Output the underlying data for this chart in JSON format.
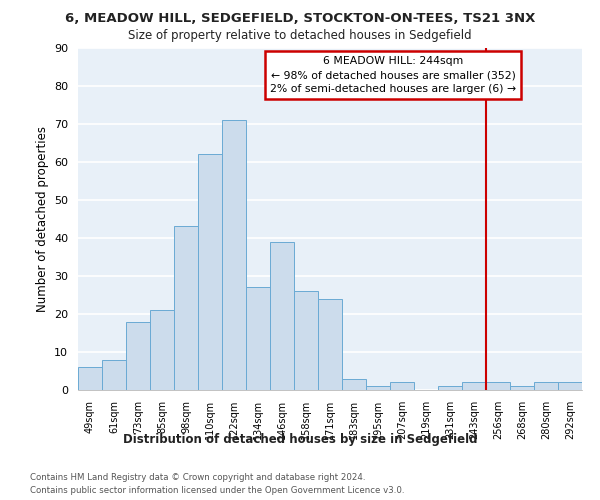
{
  "title_line1": "6, MEADOW HILL, SEDGEFIELD, STOCKTON-ON-TEES, TS21 3NX",
  "title_line2": "Size of property relative to detached houses in Sedgefield",
  "xlabel": "Distribution of detached houses by size in Sedgefield",
  "ylabel": "Number of detached properties",
  "categories": [
    "49sqm",
    "61sqm",
    "73sqm",
    "85sqm",
    "98sqm",
    "110sqm",
    "122sqm",
    "134sqm",
    "146sqm",
    "158sqm",
    "171sqm",
    "183sqm",
    "195sqm",
    "207sqm",
    "219sqm",
    "231sqm",
    "243sqm",
    "256sqm",
    "268sqm",
    "280sqm",
    "292sqm"
  ],
  "values": [
    6,
    8,
    18,
    21,
    43,
    62,
    71,
    27,
    39,
    26,
    24,
    3,
    1,
    2,
    0,
    1,
    2,
    2,
    1,
    2,
    2
  ],
  "bar_color": "#ccdcec",
  "bar_edge_color": "#6aaad4",
  "background_color": "#e8f0f8",
  "grid_color": "#ffffff",
  "annotation_text": "6 MEADOW HILL: 244sqm\n← 98% of detached houses are smaller (352)\n2% of semi-detached houses are larger (6) →",
  "annotation_box_edge_color": "#cc0000",
  "vline_color": "#cc0000",
  "vline_x_idx": 16.5,
  "ylim": [
    0,
    90
  ],
  "yticks": [
    0,
    10,
    20,
    30,
    40,
    50,
    60,
    70,
    80,
    90
  ],
  "footer_line1": "Contains HM Land Registry data © Crown copyright and database right 2024.",
  "footer_line2": "Contains public sector information licensed under the Open Government Licence v3.0."
}
